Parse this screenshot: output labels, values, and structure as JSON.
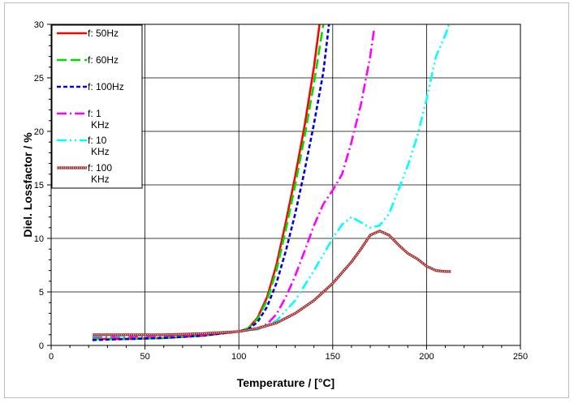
{
  "chart_data": {
    "type": "line",
    "title": "",
    "xlabel": "Temperature / [°C]",
    "ylabel": "Diel. Lossfactor / %",
    "xlim": [
      0,
      250
    ],
    "ylim": [
      0,
      30
    ],
    "xticks": [
      0,
      50,
      100,
      150,
      200,
      250
    ],
    "yticks": [
      0,
      5,
      10,
      15,
      20,
      25,
      30
    ],
    "grid": true,
    "legend_position": "top-left",
    "series": [
      {
        "name": "f: 50Hz",
        "color": "#ff0000",
        "style": "solid",
        "x": [
          22,
          40,
          60,
          80,
          100,
          105,
          110,
          115,
          120,
          125,
          130,
          135,
          140,
          143
        ],
        "y": [
          0.6,
          0.6,
          0.7,
          0.9,
          1.3,
          1.6,
          2.6,
          4.5,
          7.5,
          11.5,
          15.8,
          20.5,
          26.0,
          30.0
        ]
      },
      {
        "name": "f: 60Hz",
        "color": "#00dd00",
        "style": "long-dash",
        "x": [
          22,
          40,
          60,
          80,
          100,
          105,
          110,
          115,
          120,
          125,
          130,
          135,
          140,
          145
        ],
        "y": [
          0.6,
          0.6,
          0.7,
          0.9,
          1.3,
          1.6,
          2.5,
          4.2,
          7.0,
          10.8,
          15.0,
          19.5,
          24.5,
          30.0
        ]
      },
      {
        "name": "f: 100Hz",
        "color": "#0000dd",
        "style": "short-dash",
        "x": [
          22,
          40,
          60,
          80,
          100,
          105,
          110,
          115,
          120,
          125,
          130,
          135,
          140,
          145,
          148
        ],
        "y": [
          0.5,
          0.6,
          0.7,
          0.9,
          1.3,
          1.5,
          2.2,
          3.6,
          5.8,
          8.8,
          12.3,
          16.3,
          20.7,
          25.5,
          30.0
        ]
      },
      {
        "name": "f: 1 KHz",
        "color": "#ff00ff",
        "style": "dash-dot",
        "x": [
          22,
          40,
          60,
          80,
          100,
          110,
          115,
          120,
          125,
          130,
          135,
          140,
          145,
          150,
          155,
          160,
          165,
          170,
          172
        ],
        "y": [
          0.8,
          0.8,
          0.9,
          1.0,
          1.3,
          1.6,
          2.0,
          2.9,
          4.5,
          6.5,
          8.8,
          11.2,
          13.2,
          14.5,
          16.0,
          19.0,
          22.5,
          27.0,
          29.5
        ]
      },
      {
        "name": "f: 10 KHz",
        "color": "#00ffff",
        "style": "dash-dot-dot",
        "x": [
          22,
          40,
          60,
          80,
          100,
          110,
          120,
          130,
          140,
          150,
          155,
          160,
          165,
          170,
          175,
          180,
          185,
          190,
          195,
          200,
          205,
          210,
          212
        ],
        "y": [
          0.9,
          0.9,
          1.0,
          1.1,
          1.3,
          1.5,
          2.3,
          4.2,
          7.0,
          10.0,
          11.3,
          12.0,
          11.5,
          11.0,
          11.2,
          12.3,
          14.5,
          16.8,
          19.5,
          23.0,
          27.0,
          29.0,
          30.0
        ]
      },
      {
        "name": "f: 100 KHz",
        "color": "#a52a2a",
        "style": "dotted-band",
        "x": [
          22,
          40,
          60,
          80,
          100,
          110,
          120,
          130,
          140,
          150,
          160,
          165,
          170,
          175,
          180,
          185,
          190,
          195,
          200,
          205,
          210,
          213
        ],
        "y": [
          1.0,
          1.0,
          1.0,
          1.1,
          1.3,
          1.6,
          2.1,
          3.0,
          4.2,
          5.8,
          7.8,
          9.0,
          10.3,
          10.7,
          10.3,
          9.4,
          8.6,
          8.1,
          7.4,
          7.0,
          6.9,
          6.9
        ]
      }
    ]
  }
}
